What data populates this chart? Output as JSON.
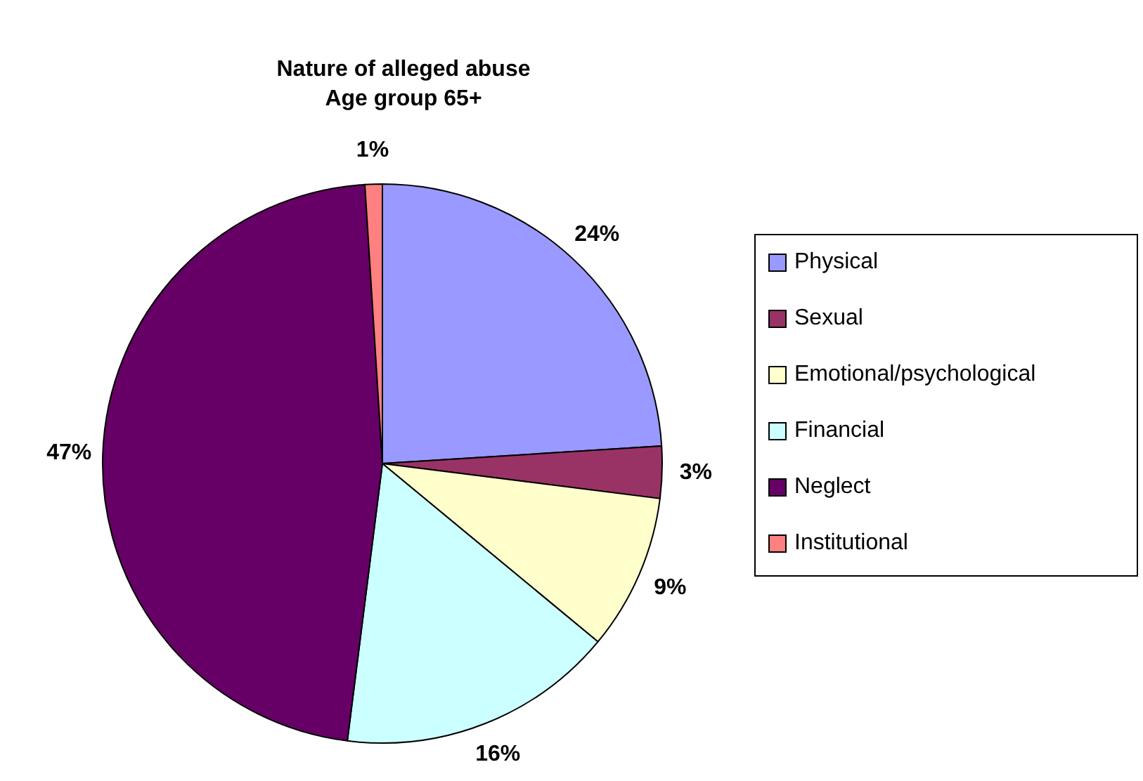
{
  "chart_data": {
    "type": "pie",
    "title": "Nature of alleged abuse\nAge group 65+",
    "categories": [
      "Physical",
      "Sexual",
      "Emotional/psychological",
      "Financial",
      "Neglect",
      "Institutional"
    ],
    "values": [
      24,
      3,
      9,
      16,
      47,
      1
    ],
    "colors": [
      "#9999ff",
      "#993366",
      "#ffffcc",
      "#ccffff",
      "#660066",
      "#ff8080"
    ],
    "value_labels": [
      "24%",
      "3%",
      "9%",
      "16%",
      "47%",
      "1%"
    ],
    "legend": "right"
  }
}
